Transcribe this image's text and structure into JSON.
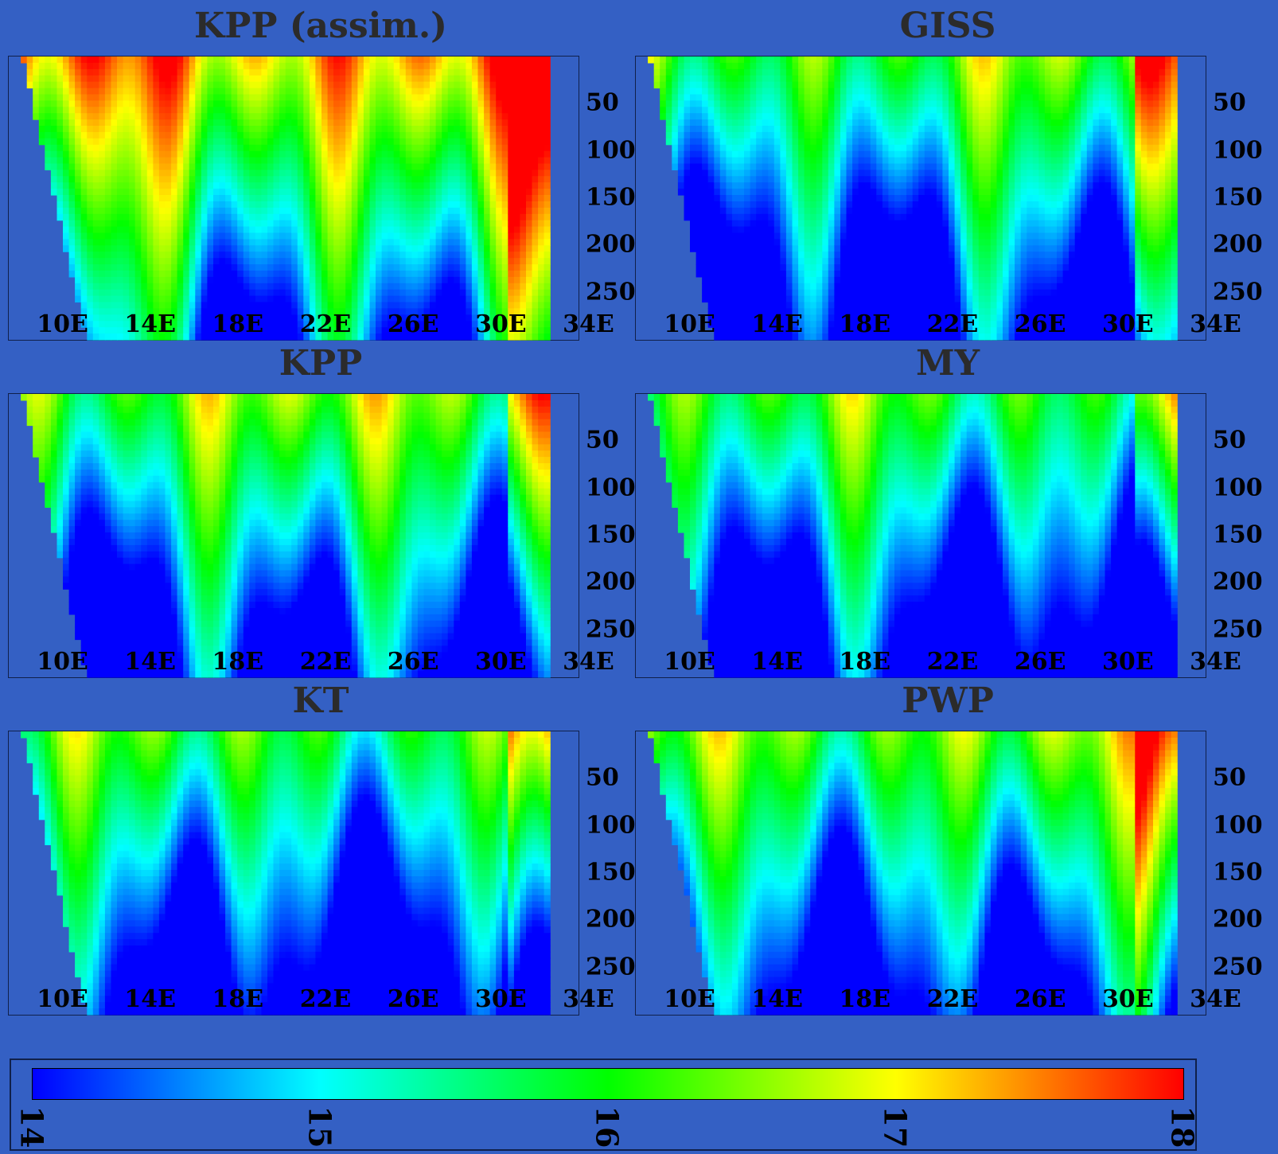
{
  "panels": [
    {
      "title": "KPP (assim.)",
      "seed": 1,
      "warm": 0.85
    },
    {
      "title": "GISS",
      "seed": 2,
      "warm": 0.55
    },
    {
      "title": "KPP",
      "seed": 3,
      "warm": 0.6
    },
    {
      "title": "MY",
      "seed": 4,
      "warm": 0.5
    },
    {
      "title": "KT",
      "seed": 5,
      "warm": 0.5
    },
    {
      "title": "PWP",
      "seed": 6,
      "warm": 0.6
    }
  ],
  "axes": {
    "x_tick_labels": [
      "10E",
      "14E",
      "18E",
      "22E",
      "26E",
      "30E",
      "34E"
    ],
    "y_tick_labels": [
      "50",
      "100",
      "150",
      "200",
      "250"
    ]
  },
  "colorbar": {
    "tick_labels": [
      "14",
      "15",
      "16",
      "17",
      "18"
    ],
    "colors": [
      "#0000ff",
      "#00ffff",
      "#00ff00",
      "#ffff00",
      "#ff0000"
    ]
  },
  "chart_data": {
    "type": "heatmap",
    "title": "",
    "xlabel": "",
    "ylabel": "",
    "x_ticks": [
      "10E",
      "14E",
      "18E",
      "22E",
      "26E",
      "30E",
      "34E"
    ],
    "x_range": [
      9,
      35
    ],
    "y_ticks": [
      50,
      100,
      150,
      200,
      250
    ],
    "y_range": [
      0,
      300
    ],
    "y_inverted": true,
    "color_range": [
      14,
      18
    ],
    "colorbar_ticks": [
      14,
      15,
      16,
      17,
      18
    ]
  }
}
